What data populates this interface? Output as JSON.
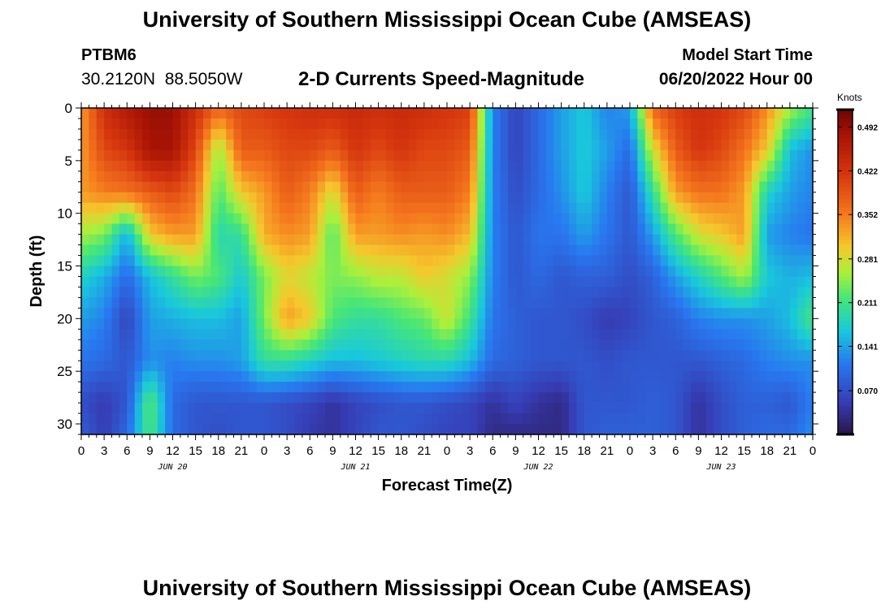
{
  "header": {
    "title": "University of Southern Mississippi Ocean Cube (AMSEAS)",
    "station_id": "PTBM6",
    "station_coords": "30.2120N  88.5050W",
    "plot_title": "2-D Currents Speed-Magnitude",
    "model_start_label": "Model Start Time",
    "model_start_value": "06/20/2022 Hour 00"
  },
  "footer": {
    "title": "University of Southern Mississippi Ocean Cube (AMSEAS)"
  },
  "chart_data": {
    "type": "heatmap",
    "title": "2-D Currents Speed-Magnitude",
    "xlabel": "Forecast Time(Z)",
    "ylabel": "Depth (ft)",
    "xlim": [
      0,
      96
    ],
    "ylim": [
      0,
      31
    ],
    "y_inverted": true,
    "x_tick_values": [
      0,
      3,
      6,
      9,
      12,
      15,
      18,
      21,
      24,
      27,
      30,
      33,
      36,
      39,
      42,
      45,
      48,
      51,
      54,
      57,
      60,
      63,
      66,
      69,
      72,
      75,
      78,
      81,
      84,
      87,
      90,
      93,
      96
    ],
    "x_tick_labels": [
      "0",
      "3",
      "6",
      "9",
      "12",
      "15",
      "18",
      "21",
      "0",
      "3",
      "6",
      "9",
      "12",
      "15",
      "18",
      "21",
      "0",
      "3",
      "6",
      "9",
      "12",
      "15",
      "18",
      "21",
      "0",
      "3",
      "6",
      "9",
      "12",
      "15",
      "18",
      "21",
      "0"
    ],
    "date_labels": [
      {
        "hour": 12,
        "label": "JUN 20"
      },
      {
        "hour": 36,
        "label": "JUN 21"
      },
      {
        "hour": 60,
        "label": "JUN 22"
      },
      {
        "hour": 84,
        "label": "JUN 23"
      }
    ],
    "y_tick_values": [
      0,
      5,
      10,
      15,
      20,
      25,
      30
    ],
    "y_tick_labels": [
      "0",
      "5",
      "10",
      "15",
      "20",
      "25",
      "30"
    ],
    "colorbar": {
      "unit": "Knots",
      "min": 0.0,
      "max": 0.52,
      "tick_values": [
        0.07,
        0.141,
        0.211,
        0.281,
        0.352,
        0.422,
        0.492
      ],
      "tick_labels": [
        "0.070",
        "0.141",
        "0.211",
        "0.281",
        "0.352",
        "0.422",
        "0.492"
      ]
    },
    "grid_time_hours": [
      0,
      3,
      6,
      9,
      12,
      15,
      18,
      21,
      24,
      27,
      30,
      33,
      36,
      39,
      42,
      45,
      48,
      51,
      54,
      57,
      60,
      63,
      66,
      69,
      72,
      75,
      78,
      81,
      84,
      87,
      90,
      93,
      96
    ],
    "grid_depth_ft": [
      0,
      4,
      8,
      12,
      16,
      20,
      24,
      28,
      31
    ],
    "speed_knots": [
      [
        0.33,
        0.43,
        0.47,
        0.49,
        0.49,
        0.43,
        0.37,
        0.4,
        0.41,
        0.42,
        0.43,
        0.43,
        0.44,
        0.43,
        0.44,
        0.43,
        0.42,
        0.41,
        0.12,
        0.06,
        0.1,
        0.14,
        0.17,
        0.12,
        0.14,
        0.37,
        0.41,
        0.43,
        0.42,
        0.4,
        0.34,
        0.26,
        0.21
      ],
      [
        0.33,
        0.4,
        0.42,
        0.48,
        0.48,
        0.4,
        0.25,
        0.38,
        0.38,
        0.4,
        0.4,
        0.38,
        0.42,
        0.4,
        0.42,
        0.4,
        0.4,
        0.38,
        0.12,
        0.06,
        0.1,
        0.14,
        0.17,
        0.14,
        0.1,
        0.28,
        0.38,
        0.42,
        0.4,
        0.36,
        0.3,
        0.16,
        0.13
      ],
      [
        0.33,
        0.35,
        0.36,
        0.38,
        0.4,
        0.36,
        0.22,
        0.3,
        0.33,
        0.38,
        0.35,
        0.28,
        0.38,
        0.35,
        0.38,
        0.38,
        0.38,
        0.35,
        0.12,
        0.07,
        0.1,
        0.13,
        0.17,
        0.12,
        0.08,
        0.2,
        0.33,
        0.36,
        0.36,
        0.33,
        0.18,
        0.14,
        0.12
      ],
      [
        0.26,
        0.24,
        0.15,
        0.3,
        0.33,
        0.33,
        0.19,
        0.2,
        0.32,
        0.34,
        0.33,
        0.22,
        0.33,
        0.33,
        0.34,
        0.33,
        0.34,
        0.31,
        0.12,
        0.08,
        0.11,
        0.11,
        0.14,
        0.11,
        0.08,
        0.14,
        0.22,
        0.28,
        0.3,
        0.33,
        0.14,
        0.12,
        0.11
      ],
      [
        0.18,
        0.15,
        0.1,
        0.16,
        0.2,
        0.24,
        0.22,
        0.17,
        0.24,
        0.29,
        0.27,
        0.24,
        0.25,
        0.27,
        0.27,
        0.3,
        0.28,
        0.25,
        0.12,
        0.08,
        0.1,
        0.08,
        0.09,
        0.09,
        0.07,
        0.09,
        0.14,
        0.18,
        0.22,
        0.26,
        0.17,
        0.15,
        0.16
      ],
      [
        0.14,
        0.12,
        0.06,
        0.14,
        0.15,
        0.16,
        0.16,
        0.14,
        0.24,
        0.33,
        0.3,
        0.22,
        0.2,
        0.2,
        0.22,
        0.23,
        0.28,
        0.21,
        0.11,
        0.09,
        0.08,
        0.08,
        0.07,
        0.05,
        0.06,
        0.08,
        0.09,
        0.12,
        0.13,
        0.13,
        0.14,
        0.16,
        0.22
      ],
      [
        0.11,
        0.1,
        0.08,
        0.13,
        0.12,
        0.13,
        0.13,
        0.14,
        0.2,
        0.2,
        0.18,
        0.16,
        0.16,
        0.17,
        0.18,
        0.19,
        0.19,
        0.16,
        0.1,
        0.09,
        0.08,
        0.08,
        0.08,
        0.07,
        0.08,
        0.08,
        0.08,
        0.08,
        0.09,
        0.1,
        0.12,
        0.13,
        0.13
      ],
      [
        0.07,
        0.05,
        0.08,
        0.23,
        0.1,
        0.08,
        0.08,
        0.08,
        0.08,
        0.07,
        0.06,
        0.04,
        0.06,
        0.07,
        0.08,
        0.08,
        0.07,
        0.06,
        0.04,
        0.06,
        0.04,
        0.03,
        0.08,
        0.08,
        0.08,
        0.09,
        0.08,
        0.04,
        0.07,
        0.09,
        0.09,
        0.08,
        0.12
      ],
      [
        0.09,
        0.05,
        0.1,
        0.22,
        0.1,
        0.08,
        0.07,
        0.08,
        0.08,
        0.07,
        0.05,
        0.04,
        0.06,
        0.08,
        0.08,
        0.07,
        0.06,
        0.06,
        0.03,
        0.03,
        0.03,
        0.03,
        0.08,
        0.09,
        0.09,
        0.09,
        0.08,
        0.04,
        0.07,
        0.09,
        0.1,
        0.1,
        0.13
      ]
    ]
  }
}
